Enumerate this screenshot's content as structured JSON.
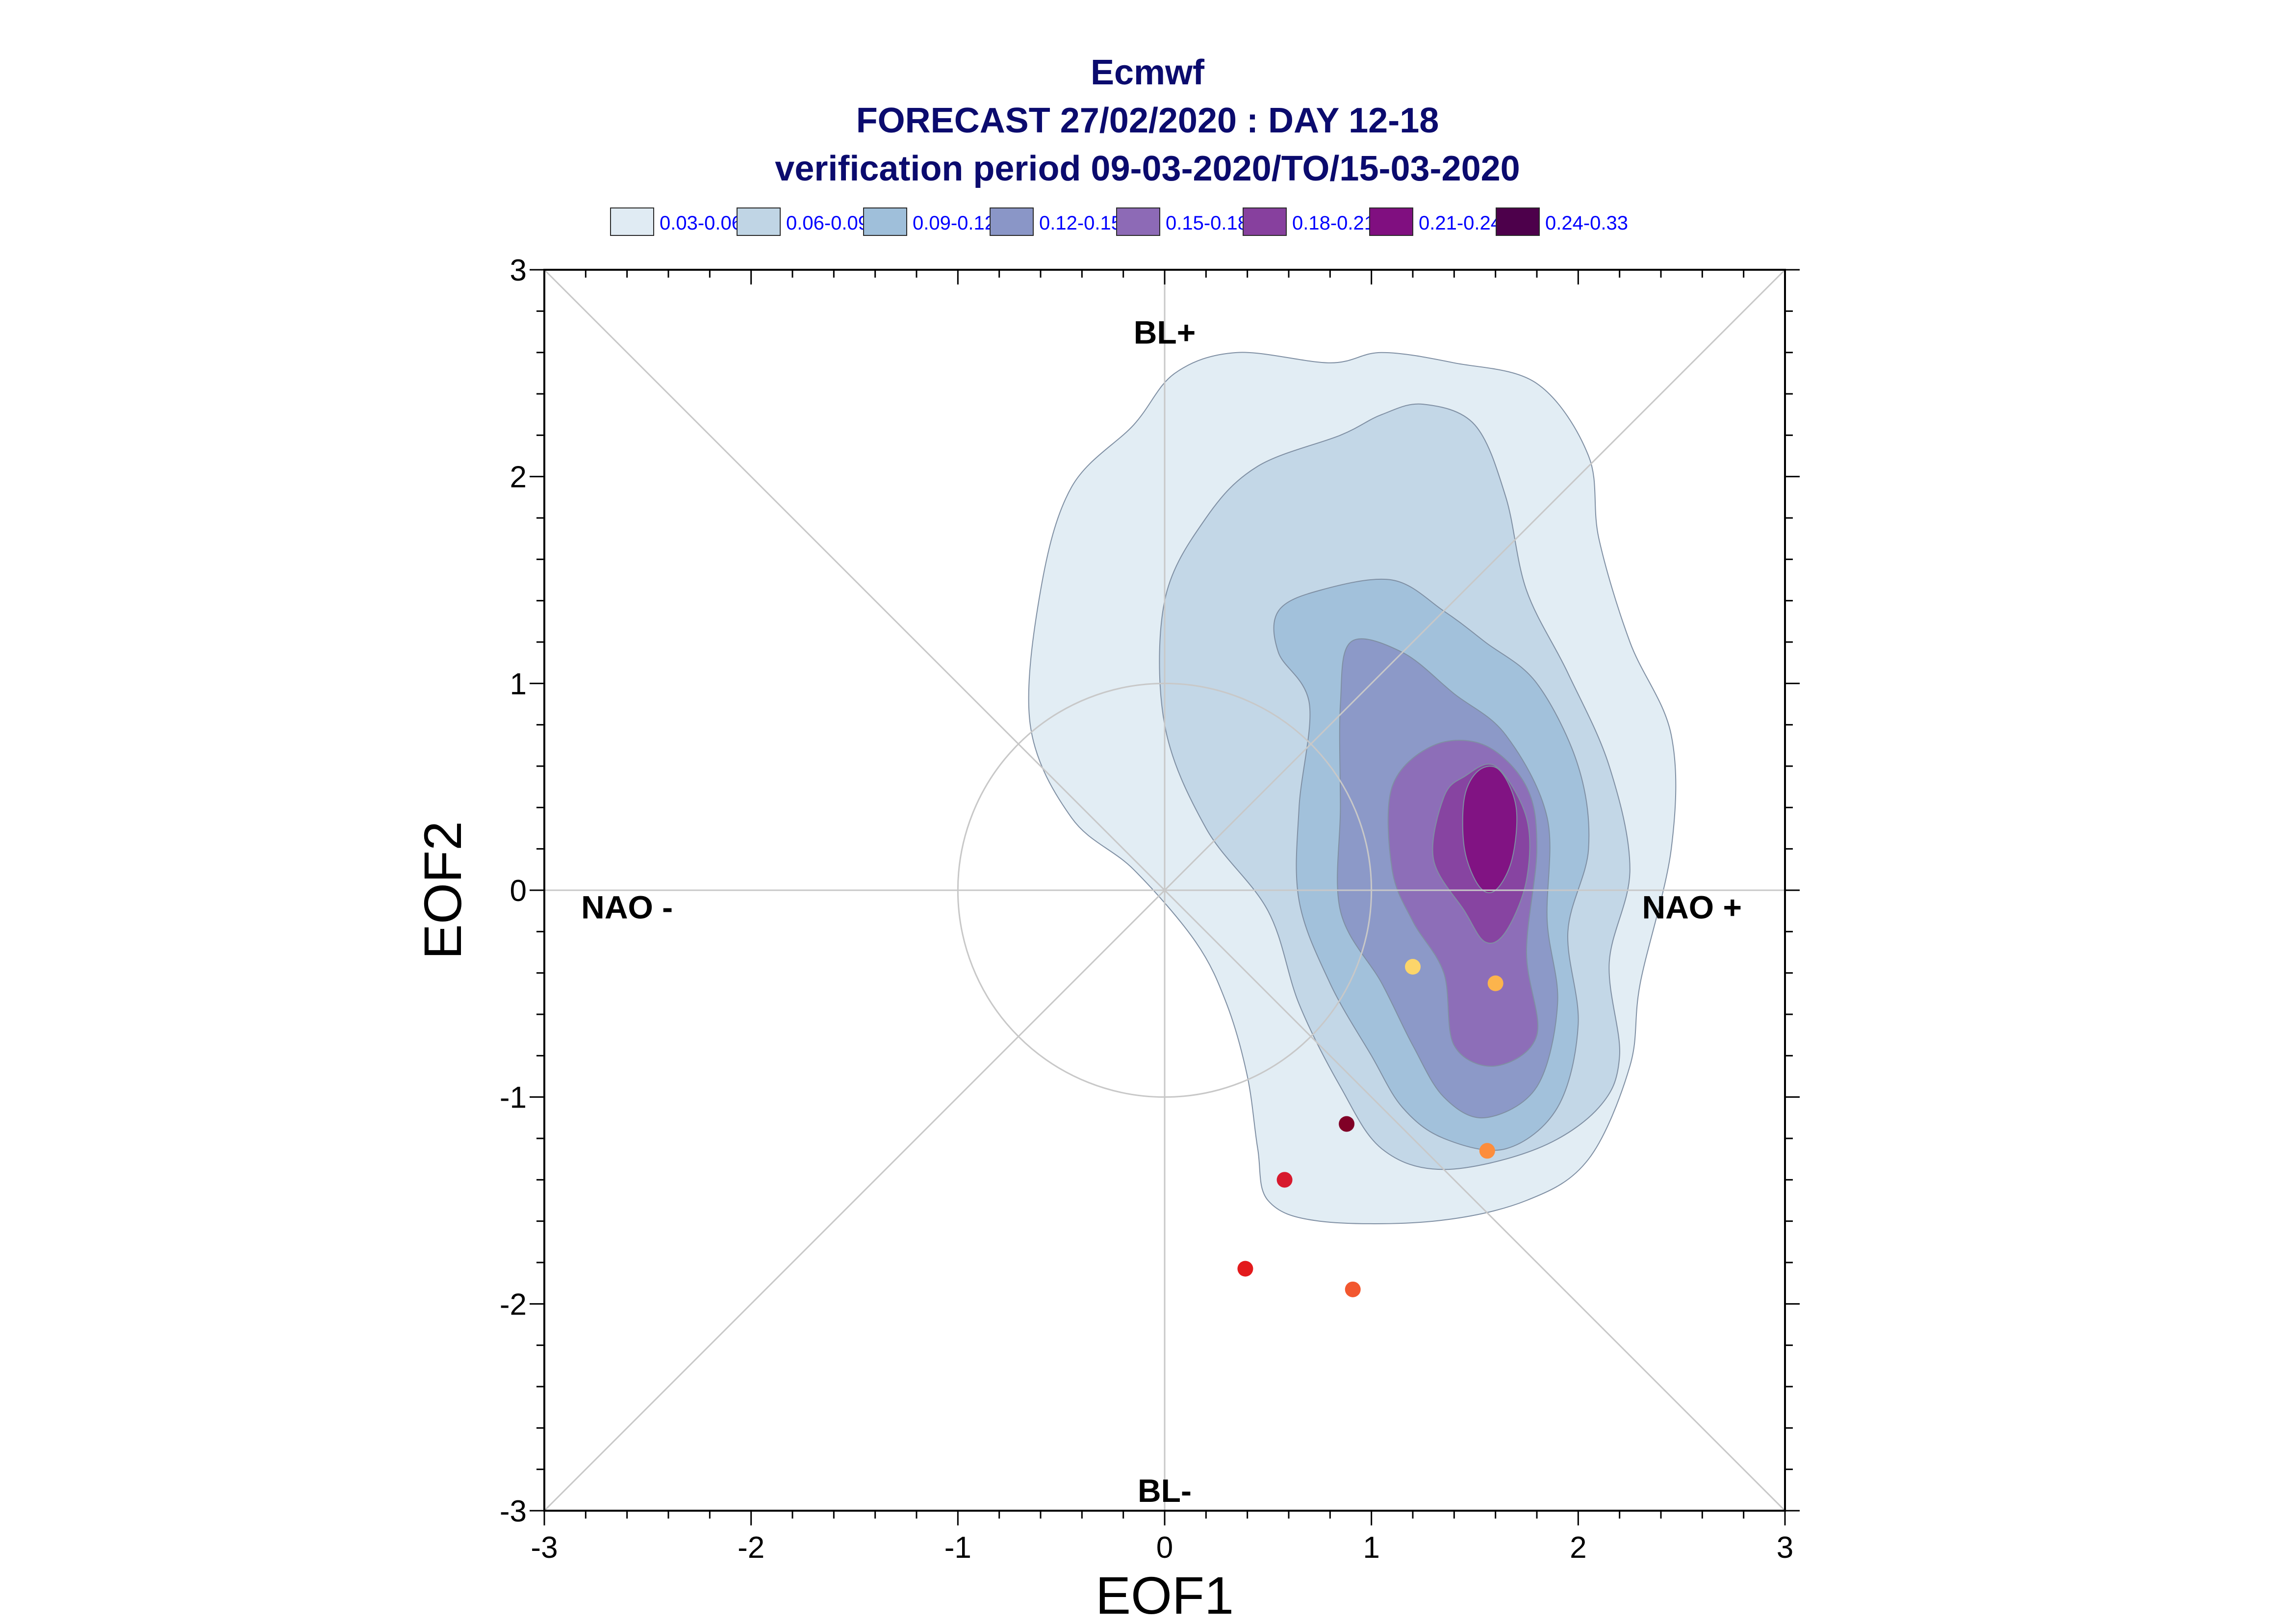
{
  "chart_data": {
    "type": "contour",
    "title_lines": [
      "Ecmwf",
      "FORECAST 27/02/2020 : DAY 12-18",
      "verification period 09-03-2020/TO/15-03-2020"
    ],
    "xlabel": "EOF1",
    "ylabel": "EOF2",
    "xlim": [
      -3,
      3
    ],
    "ylim": [
      -3,
      3
    ],
    "x_ticks": [
      "-3",
      "-2",
      "-1",
      "0",
      "1",
      "2",
      "3"
    ],
    "y_ticks": [
      "-3",
      "-2",
      "-1",
      "0",
      "1",
      "2",
      "3"
    ],
    "grid": false,
    "reference_circle_radius": 1,
    "legend_placement": "top",
    "legend": [
      {
        "label": "0.03-0.06",
        "color": "#e0ebf3"
      },
      {
        "label": "0.06-0.09",
        "color": "#c0d5e5"
      },
      {
        "label": "0.09-0.12",
        "color": "#9fbfda"
      },
      {
        "label": "0.12-0.15",
        "color": "#8a96c7"
      },
      {
        "label": "0.15-0.18",
        "color": "#8d6ab6"
      },
      {
        "label": "0.18-0.21",
        "color": "#87409e"
      },
      {
        "label": "0.21-0.24",
        "color": "#800f80"
      },
      {
        "label": "0.24-0.33",
        "color": "#4d004b"
      }
    ],
    "regime_labels": [
      {
        "text": "BL+",
        "x": 0,
        "y": 2.7
      },
      {
        "text": "BL-",
        "x": 0,
        "y": -2.9
      },
      {
        "text": "NAO -",
        "x": -2.6,
        "y": -0.08
      },
      {
        "text": "NAO +",
        "x": 2.55,
        "y": -0.08
      }
    ],
    "contours": [
      {
        "level": "0.03-0.06",
        "color": "#e0ebf3",
        "points": [
          [
            -0.15,
            2.25
          ],
          [
            0.05,
            2.5
          ],
          [
            0.35,
            2.6
          ],
          [
            0.8,
            2.55
          ],
          [
            1.05,
            2.6
          ],
          [
            1.4,
            2.55
          ],
          [
            1.8,
            2.45
          ],
          [
            2.05,
            2.1
          ],
          [
            2.1,
            1.7
          ],
          [
            2.25,
            1.2
          ],
          [
            2.45,
            0.75
          ],
          [
            2.45,
            0.2
          ],
          [
            2.3,
            -0.45
          ],
          [
            2.25,
            -0.85
          ],
          [
            2.05,
            -1.3
          ],
          [
            1.75,
            -1.5
          ],
          [
            1.3,
            -1.6
          ],
          [
            0.75,
            -1.6
          ],
          [
            0.5,
            -1.5
          ],
          [
            0.45,
            -1.25
          ],
          [
            0.4,
            -0.9
          ],
          [
            0.3,
            -0.55
          ],
          [
            0.15,
            -0.25
          ],
          [
            -0.15,
            0.1
          ],
          [
            -0.45,
            0.35
          ],
          [
            -0.65,
            0.8
          ],
          [
            -0.6,
            1.45
          ],
          [
            -0.45,
            1.95
          ]
        ]
      },
      {
        "level": "0.06-0.09",
        "color": "#c0d5e5",
        "points": [
          [
            0.2,
            1.8
          ],
          [
            0.45,
            2.05
          ],
          [
            0.85,
            2.2
          ],
          [
            1.05,
            2.3
          ],
          [
            1.25,
            2.35
          ],
          [
            1.5,
            2.25
          ],
          [
            1.65,
            1.9
          ],
          [
            1.75,
            1.45
          ],
          [
            1.95,
            1.05
          ],
          [
            2.15,
            0.6
          ],
          [
            2.25,
            0.1
          ],
          [
            2.15,
            -0.35
          ],
          [
            2.2,
            -0.8
          ],
          [
            2.1,
            -1.05
          ],
          [
            1.8,
            -1.25
          ],
          [
            1.35,
            -1.35
          ],
          [
            1.05,
            -1.25
          ],
          [
            0.85,
            -0.95
          ],
          [
            0.65,
            -0.55
          ],
          [
            0.5,
            -0.1
          ],
          [
            0.2,
            0.3
          ],
          [
            0,
            0.8
          ],
          [
            0,
            1.4
          ]
        ]
      },
      {
        "level": "0.09-0.12",
        "color": "#9fbfda",
        "points": [
          [
            0.55,
            1.35
          ],
          [
            0.75,
            1.45
          ],
          [
            1.1,
            1.5
          ],
          [
            1.35,
            1.35
          ],
          [
            1.55,
            1.2
          ],
          [
            1.8,
            1.0
          ],
          [
            2.0,
            0.6
          ],
          [
            2.05,
            0.2
          ],
          [
            1.95,
            -0.2
          ],
          [
            2.0,
            -0.65
          ],
          [
            1.9,
            -1.05
          ],
          [
            1.65,
            -1.25
          ],
          [
            1.35,
            -1.2
          ],
          [
            1.15,
            -1.05
          ],
          [
            1.0,
            -0.8
          ],
          [
            0.8,
            -0.45
          ],
          [
            0.65,
            -0.05
          ],
          [
            0.65,
            0.4
          ],
          [
            0.7,
            0.9
          ],
          [
            0.55,
            1.15
          ]
        ]
      },
      {
        "level": "0.12-0.15",
        "color": "#8a96c7",
        "points": [
          [
            0.9,
            1.2
          ],
          [
            1.15,
            1.15
          ],
          [
            1.4,
            0.95
          ],
          [
            1.65,
            0.75
          ],
          [
            1.85,
            0.35
          ],
          [
            1.85,
            -0.15
          ],
          [
            1.9,
            -0.55
          ],
          [
            1.8,
            -0.95
          ],
          [
            1.55,
            -1.1
          ],
          [
            1.35,
            -1.0
          ],
          [
            1.2,
            -0.75
          ],
          [
            1.05,
            -0.45
          ],
          [
            0.85,
            -0.1
          ],
          [
            0.85,
            0.4
          ],
          [
            0.85,
            0.9
          ]
        ]
      },
      {
        "level": "0.15-0.18",
        "color": "#8d6ab6",
        "points": [
          [
            1.3,
            0.7
          ],
          [
            1.55,
            0.7
          ],
          [
            1.75,
            0.5
          ],
          [
            1.8,
            0.2
          ],
          [
            1.75,
            -0.3
          ],
          [
            1.8,
            -0.7
          ],
          [
            1.6,
            -0.85
          ],
          [
            1.4,
            -0.75
          ],
          [
            1.35,
            -0.4
          ],
          [
            1.2,
            -0.15
          ],
          [
            1.1,
            0.1
          ],
          [
            1.1,
            0.5
          ]
        ]
      },
      {
        "level": "0.18-0.21",
        "color": "#87409e",
        "points": [
          [
            1.45,
            0.55
          ],
          [
            1.6,
            0.6
          ],
          [
            1.75,
            0.35
          ],
          [
            1.75,
            0.05
          ],
          [
            1.65,
            -0.2
          ],
          [
            1.55,
            -0.25
          ],
          [
            1.45,
            -0.1
          ],
          [
            1.3,
            0.15
          ],
          [
            1.35,
            0.45
          ]
        ]
      },
      {
        "level": "0.21-0.24",
        "color": "#800f80",
        "points": [
          [
            1.52,
            0.58
          ],
          [
            1.62,
            0.58
          ],
          [
            1.7,
            0.4
          ],
          [
            1.68,
            0.15
          ],
          [
            1.6,
            0.0
          ],
          [
            1.52,
            0.02
          ],
          [
            1.45,
            0.2
          ],
          [
            1.45,
            0.45
          ]
        ]
      }
    ],
    "member_points": [
      {
        "x": 1.2,
        "y": -0.37,
        "color": "#fcd56a"
      },
      {
        "x": 1.6,
        "y": -0.45,
        "color": "#fcb44c"
      },
      {
        "x": 0.88,
        "y": -1.13,
        "color": "#800026"
      },
      {
        "x": 1.56,
        "y": -1.26,
        "color": "#fd8d3c"
      },
      {
        "x": 0.58,
        "y": -1.4,
        "color": "#d7192d"
      },
      {
        "x": 0.39,
        "y": -1.83,
        "color": "#e31a1c"
      },
      {
        "x": 0.91,
        "y": -1.93,
        "color": "#f2572f"
      }
    ]
  }
}
